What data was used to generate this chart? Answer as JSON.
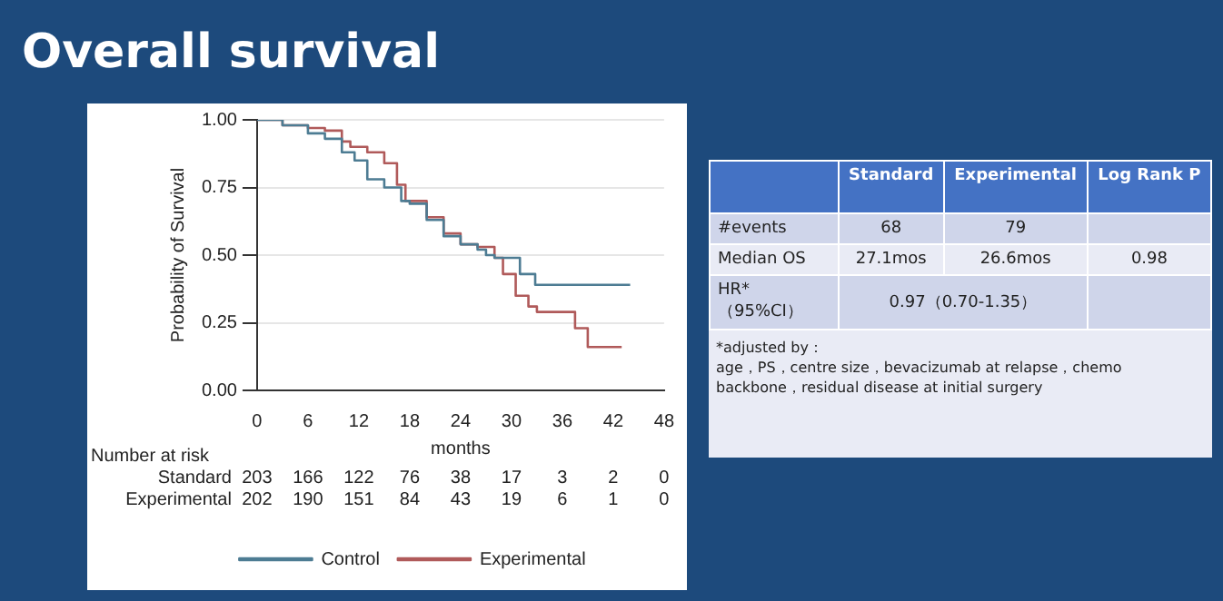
{
  "chart_data": {
    "type": "step",
    "title": "Overall survival",
    "xlabel": "months",
    "ylabel": "Probability of Survival",
    "xlim": [
      0,
      48
    ],
    "xticks": [
      0,
      6,
      12,
      18,
      24,
      30,
      36,
      42,
      48
    ],
    "ylim": [
      0,
      1
    ],
    "yticks": [
      {
        "value": 0,
        "label": "0.00"
      },
      {
        "value": 0.25,
        "label": "0.25"
      },
      {
        "value": 0.5,
        "label": "0.50"
      },
      {
        "value": 0.75,
        "label": "0.75"
      },
      {
        "value": 1,
        "label": "1.00"
      }
    ],
    "grid": "y",
    "legend": "bottom",
    "marker": "none",
    "line_style": "solid",
    "series": [
      {
        "name": "Control",
        "color": "#4d7c93",
        "x": [
          0,
          3,
          6,
          8,
          10,
          11.5,
          13,
          15,
          17,
          18,
          20,
          22,
          24,
          26,
          27,
          28,
          31,
          32.8,
          44
        ],
        "values": [
          1,
          0.98,
          0.95,
          0.93,
          0.88,
          0.85,
          0.78,
          0.75,
          0.7,
          0.69,
          0.63,
          0.57,
          0.54,
          0.52,
          0.5,
          0.49,
          0.43,
          0.39,
          0.39
        ]
      },
      {
        "name": "Experimental",
        "color": "#b05a5a",
        "x": [
          0,
          3,
          6,
          8,
          10,
          11,
          13,
          15,
          16.5,
          17.5,
          20,
          22,
          24,
          26,
          28,
          29,
          30.5,
          32,
          33,
          37.5,
          39,
          43
        ],
        "values": [
          1,
          0.98,
          0.97,
          0.96,
          0.92,
          0.9,
          0.88,
          0.84,
          0.76,
          0.7,
          0.64,
          0.58,
          0.54,
          0.53,
          0.49,
          0.43,
          0.35,
          0.31,
          0.29,
          0.23,
          0.16,
          0.16
        ]
      }
    ],
    "annotations": [
      "Number at risk",
      "Standard",
      "203",
      "166",
      "122",
      "76",
      "38",
      "17",
      "3",
      "2",
      "0",
      "Experimental",
      "202",
      "190",
      "151",
      "84",
      "43",
      "19",
      "6",
      "1",
      "0",
      "Standard",
      "Experimental",
      "Log Rank P",
      "#events",
      "68",
      "79",
      "Median OS",
      "27.1mos",
      "26.6mos",
      "0.98",
      "HR*（95%CI）",
      "0.97（0.70-1.35）",
      "*adjusted by：",
      "age，PS，centre size，bevacizumab at relapse，chemo backbone，residual disease at initial surgery"
    ]
  }
}
